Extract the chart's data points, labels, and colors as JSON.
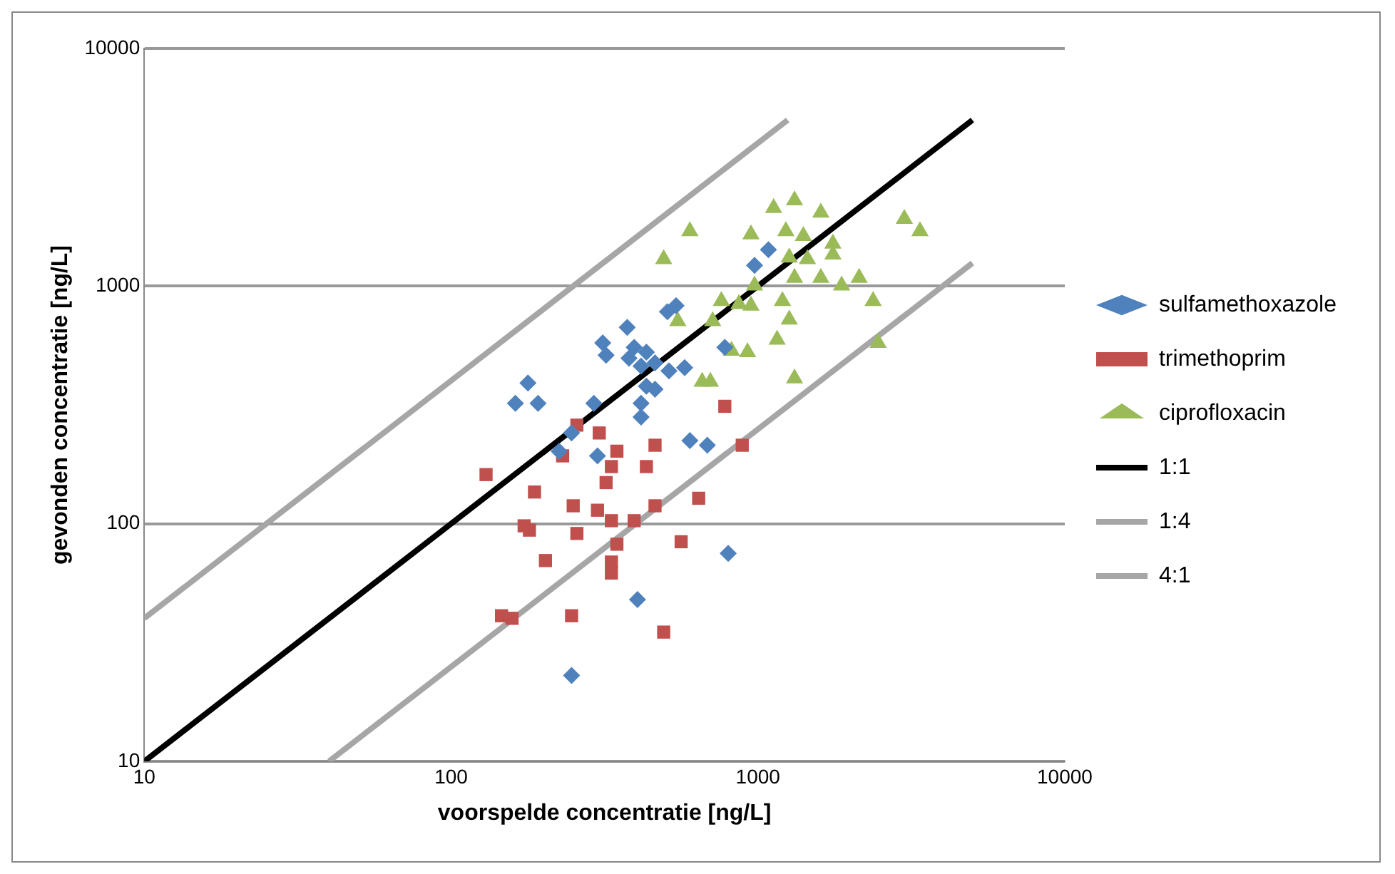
{
  "chart_data": {
    "type": "scatter",
    "xlabel": "voorspelde concentratie [ng/L]",
    "ylabel": "gevonden concentratie [ng/L]",
    "log": "xy",
    "xlim": [
      10,
      10000
    ],
    "ylim": [
      10,
      10000
    ],
    "xticks": [
      10,
      100,
      1000,
      10000
    ],
    "yticks": [
      10,
      100,
      1000,
      10000
    ],
    "grid": "y",
    "legend": "right",
    "series": [
      {
        "name": "sulfamethoxazole",
        "color": "#4f81bd",
        "marker": "diamond",
        "x": [
          162,
          178,
          192,
          292,
          247,
          225,
          300,
          312,
          320,
          375,
          395,
          433,
          380,
          416,
          462,
          513,
          577,
          433,
          462,
          416,
          416,
          507,
          541,
          975,
          1082,
          780,
          600,
          684,
          800,
          405,
          247
        ],
        "values": [
          321,
          391,
          321,
          321,
          241,
          202,
          193,
          577,
          512,
          670,
          552,
          527,
          497,
          461,
          475,
          440,
          454,
          379,
          368,
          321,
          281,
          780,
          827,
          1223,
          1422,
          552,
          224,
          214,
          75,
          48,
          23
        ]
      },
      {
        "name": "trimethoprim",
        "color": "#c0504d",
        "marker": "square",
        "x": [
          130,
          257,
          304,
          347,
          462,
          231,
          333,
          433,
          320,
          780,
          889,
          187,
          641,
          250,
          300,
          333,
          395,
          462,
          173,
          180,
          257,
          347,
          562,
          203,
          333,
          333,
          146,
          158,
          247,
          493
        ],
        "values": [
          161,
          260,
          241,
          202,
          214,
          193,
          174,
          174,
          149,
          312,
          214,
          136,
          128,
          119,
          114,
          103,
          103,
          119,
          98,
          94,
          91,
          82,
          84,
          70,
          69,
          62,
          41,
          40,
          41,
          35
        ]
      },
      {
        "name": "ciprofloxacin",
        "color": "#9bbb59",
        "marker": "triangle",
        "x": [
          1125,
          1316,
          1603,
          600,
          949,
          1233,
          1406,
          1755,
          493,
          1265,
          1450,
          1755,
          1316,
          1603,
          1874,
          2137,
          975,
          760,
          867,
          949,
          1202,
          2373,
          548,
          712,
          1265,
          1155,
          820,
          925,
          2465,
          658,
          700,
          1316,
          3000,
          3374
        ],
        "values": [
          2133,
          2298,
          2037,
          1702,
          1652,
          1702,
          1626,
          1510,
          1298,
          1318,
          1298,
          1359,
          1084,
          1084,
          1006,
          1084,
          1006,
          866,
          840,
          827,
          866,
          866,
          712,
          712,
          723,
          595,
          535,
          527,
          577,
          396,
          396,
          409,
          1919,
          1702
        ]
      },
      {
        "name": "1:1",
        "type": "line",
        "color": "#000000",
        "marker": "none",
        "x": [
          10,
          5000
        ],
        "values": [
          10,
          5000
        ]
      },
      {
        "name": "1:4",
        "type": "line",
        "color": "#a6a6a6",
        "marker": "none",
        "x": [
          10,
          1250
        ],
        "values": [
          40,
          5000
        ]
      },
      {
        "name": "4:1",
        "type": "line",
        "color": "#a6a6a6",
        "marker": "none",
        "x": [
          40,
          5000
        ],
        "values": [
          10,
          1250
        ]
      }
    ]
  }
}
